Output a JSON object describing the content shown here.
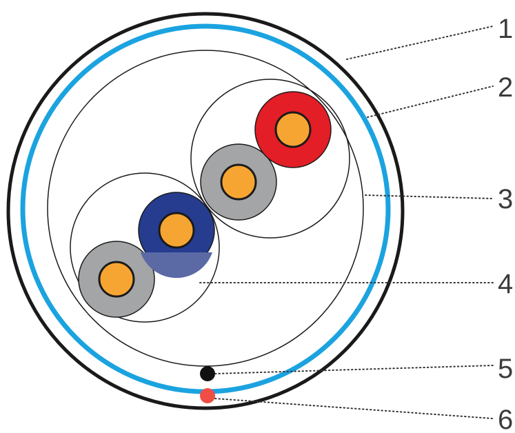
{
  "callouts": [
    {
      "label": "1",
      "part": "outer-jacket"
    },
    {
      "label": "2",
      "part": "blue-sheath"
    },
    {
      "label": "3",
      "part": "inner-sheath"
    },
    {
      "label": "4",
      "part": "pair-binder"
    },
    {
      "label": "5",
      "part": "black-drain-wire"
    },
    {
      "label": "6",
      "part": "red-rip-cord"
    }
  ],
  "colors": {
    "outer_jacket": "#1a1a1a",
    "blue_sheath": "#1ba3e0",
    "thin_line": "#1a1a1a",
    "conductor_core": "#f7a532",
    "insulation_grey": "#a3a5a7",
    "insulation_blue": "#253c8f",
    "insulation_red": "#e31e26",
    "drain_wire": "#111111",
    "rip_cord": "#f04e45"
  }
}
